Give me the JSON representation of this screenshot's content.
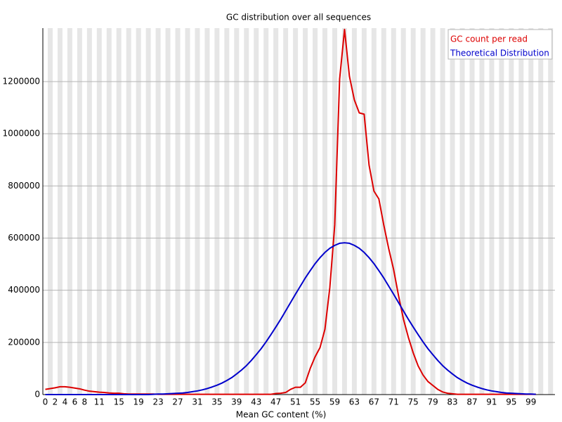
{
  "chart_data": {
    "type": "line",
    "title": "GC distribution over all sequences",
    "x_label": "Mean GC content (%)",
    "x": [
      0,
      1,
      2,
      3,
      4,
      5,
      6,
      7,
      8,
      9,
      10,
      11,
      12,
      13,
      14,
      15,
      16,
      17,
      18,
      19,
      20,
      21,
      22,
      23,
      24,
      25,
      26,
      27,
      28,
      29,
      30,
      31,
      32,
      33,
      34,
      35,
      36,
      37,
      38,
      39,
      40,
      41,
      42,
      43,
      44,
      45,
      46,
      47,
      48,
      49,
      50,
      51,
      52,
      53,
      54,
      55,
      56,
      57,
      58,
      59,
      60,
      61,
      62,
      63,
      64,
      65,
      66,
      67,
      68,
      69,
      70,
      71,
      72,
      73,
      74,
      75,
      76,
      77,
      78,
      79,
      80,
      81,
      82,
      83,
      84,
      85,
      86,
      87,
      88,
      89,
      90,
      91,
      92,
      93,
      94,
      95,
      96,
      97,
      98,
      99,
      100
    ],
    "series": [
      {
        "name": "GC count per read",
        "color": "#dd0000",
        "values": [
          20000,
          23000,
          26000,
          30000,
          30000,
          28000,
          25000,
          22000,
          17000,
          13000,
          11000,
          9000,
          8000,
          6000,
          5000,
          5000,
          3000,
          2000,
          2000,
          2000,
          2000,
          2000,
          2000,
          1000,
          1000,
          1000,
          1000,
          1000,
          1000,
          1000,
          1000,
          1000,
          1000,
          1000,
          1000,
          1000,
          1000,
          1000,
          1000,
          1000,
          1000,
          1000,
          1000,
          1000,
          1000,
          1000,
          1000,
          4000,
          5000,
          8000,
          20000,
          28000,
          28000,
          45000,
          100000,
          145000,
          180000,
          250000,
          410000,
          650000,
          1210000,
          1400000,
          1220000,
          1130000,
          1080000,
          1075000,
          880000,
          780000,
          750000,
          650000,
          560000,
          480000,
          380000,
          290000,
          220000,
          160000,
          110000,
          75000,
          50000,
          35000,
          20000,
          10000,
          5000,
          3000,
          1000,
          1000,
          1000,
          1000,
          1000,
          1000,
          1000,
          1000,
          1000,
          1000,
          1000,
          1000,
          1000,
          1000,
          1000,
          1000,
          1000
        ]
      },
      {
        "name": "Theoretical Distribution",
        "color": "#0000cc",
        "values": [
          0,
          0,
          0,
          0,
          0,
          0,
          0,
          0,
          0,
          0,
          0,
          0,
          0,
          0,
          0,
          0,
          0,
          0,
          0,
          0,
          0,
          0,
          1000,
          2000,
          2000,
          3000,
          4000,
          5000,
          6000,
          8000,
          11000,
          14000,
          18000,
          23000,
          29000,
          36000,
          44000,
          54000,
          65000,
          79000,
          94000,
          111000,
          131000,
          153000,
          176000,
          202000,
          230000,
          259000,
          289000,
          321000,
          353000,
          385000,
          416000,
          447000,
          475000,
          502000,
          525000,
          545000,
          561000,
          572000,
          580000,
          582000,
          580000,
          572000,
          561000,
          545000,
          525000,
          502000,
          475000,
          447000,
          416000,
          385000,
          353000,
          321000,
          289000,
          259000,
          230000,
          202000,
          176000,
          153000,
          131000,
          111000,
          94000,
          79000,
          65000,
          54000,
          44000,
          36000,
          29000,
          23000,
          18000,
          14000,
          11000,
          8000,
          6000,
          5000,
          4000,
          3000,
          2000,
          2000,
          1000
        ]
      }
    ],
    "xlim": [
      -0.5,
      103.9
    ],
    "xticks": [
      0,
      2,
      4,
      6,
      8,
      11,
      15,
      19,
      23,
      27,
      31,
      35,
      39,
      43,
      47,
      51,
      55,
      59,
      63,
      67,
      71,
      75,
      79,
      83,
      87,
      91,
      95,
      99
    ],
    "ylim": [
      0,
      1405000
    ],
    "yticks": [
      0,
      200000,
      400000,
      600000,
      800000,
      1000000,
      1200000
    ],
    "grid": true,
    "legend": "upper right"
  }
}
